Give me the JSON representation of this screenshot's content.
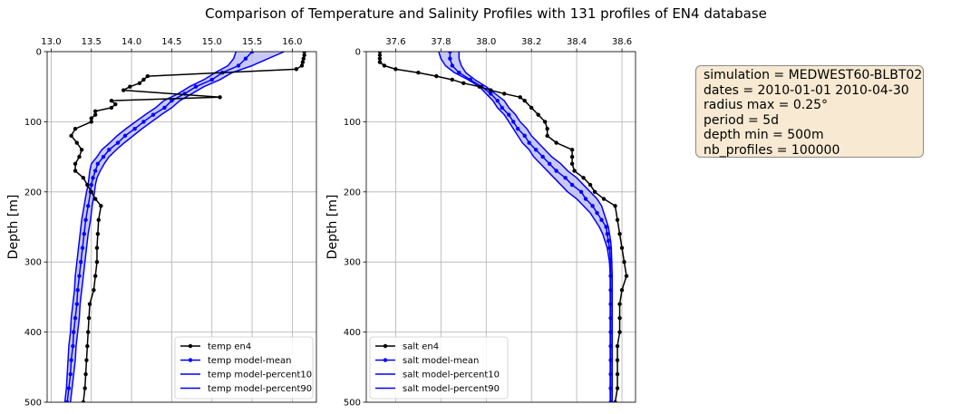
{
  "title": "Comparison of Temperature and Salinity Profiles with 131 profiles of EN4 database",
  "info_box": [
    "simulation = MEDWEST60-BLBT02",
    "dates = 2010-01-01 2010-04-30",
    "radius max = 0.25°",
    "period = 5d",
    "depth min = 500m",
    "nb_profiles = 100000"
  ],
  "colors": {
    "obs": "#000000",
    "model": "#0000ff",
    "band": "#b7b7f4",
    "grid": "#b0b0b0"
  },
  "chart_data": [
    {
      "type": "line",
      "panel": "temperature",
      "ylabel": "Depth [m]",
      "ylim": [
        500,
        0
      ],
      "xlim": [
        12.95,
        16.3
      ],
      "x_ticks": [
        "13.0",
        "13.5",
        "14.0",
        "14.5",
        "15.0",
        "15.5",
        "16.0"
      ],
      "y_ticks": [
        "0",
        "100",
        "200",
        "300",
        "400",
        "500"
      ],
      "grid": true,
      "legend_position": "lower-right",
      "legend": [
        "temp en4",
        "temp model-mean",
        "temp model-percent10",
        "temp model-percent90"
      ],
      "series": [
        {
          "name": "temp en4",
          "depth": [
            0,
            5,
            10,
            15,
            20,
            25,
            35,
            40,
            45,
            50,
            55,
            65,
            70,
            75,
            80,
            85,
            90,
            95,
            100,
            110,
            120,
            130,
            140,
            150,
            160,
            170,
            180,
            190,
            200,
            210,
            220,
            240,
            260,
            280,
            300,
            320,
            340,
            360,
            380,
            400,
            420,
            440,
            460,
            480,
            500
          ],
          "values": [
            16.15,
            16.15,
            16.14,
            16.13,
            16.12,
            16.05,
            14.2,
            14.15,
            14.1,
            13.98,
            13.9,
            15.1,
            13.75,
            13.8,
            13.75,
            13.55,
            13.55,
            13.5,
            13.5,
            13.3,
            13.25,
            13.32,
            13.38,
            13.35,
            13.3,
            13.3,
            13.4,
            13.45,
            13.5,
            13.55,
            13.62,
            13.59,
            13.58,
            13.57,
            13.57,
            13.55,
            13.53,
            13.48,
            13.47,
            13.46,
            13.45,
            13.44,
            13.43,
            13.42,
            13.4
          ]
        },
        {
          "name": "temp model-mean",
          "depth": [
            0,
            10,
            20,
            30,
            40,
            50,
            60,
            70,
            80,
            90,
            100,
            110,
            120,
            130,
            140,
            150,
            160,
            170,
            180,
            190,
            200,
            220,
            240,
            260,
            280,
            300,
            320,
            340,
            360,
            380,
            400,
            420,
            440,
            460,
            480,
            500
          ],
          "values": [
            15.5,
            15.42,
            15.33,
            15.13,
            15.0,
            14.8,
            14.66,
            14.5,
            14.41,
            14.27,
            14.15,
            14.04,
            13.92,
            13.83,
            13.72,
            13.65,
            13.58,
            13.55,
            13.52,
            13.5,
            13.49,
            13.46,
            13.43,
            13.41,
            13.39,
            13.37,
            13.35,
            13.33,
            13.32,
            13.3,
            13.28,
            13.27,
            13.25,
            13.24,
            13.22,
            13.2
          ]
        },
        {
          "name": "temp model-percent10",
          "depth": [
            0,
            10,
            20,
            30,
            40,
            50,
            60,
            70,
            80,
            90,
            100,
            110,
            120,
            130,
            140,
            150,
            160,
            170,
            180,
            190,
            200,
            220,
            240,
            260,
            280,
            300,
            320,
            340,
            360,
            380,
            400,
            420,
            440,
            460,
            480,
            500
          ],
          "values": [
            15.3,
            15.27,
            15.2,
            15.04,
            14.9,
            14.72,
            14.58,
            14.4,
            14.3,
            14.17,
            14.05,
            13.93,
            13.82,
            13.73,
            13.63,
            13.57,
            13.5,
            13.48,
            13.47,
            13.46,
            13.44,
            13.41,
            13.38,
            13.36,
            13.34,
            13.32,
            13.3,
            13.29,
            13.27,
            13.25,
            13.24,
            13.22,
            13.21,
            13.2,
            13.19,
            13.17
          ]
        },
        {
          "name": "temp model-percent90",
          "depth": [
            0,
            10,
            20,
            30,
            40,
            50,
            60,
            70,
            80,
            90,
            100,
            110,
            120,
            130,
            140,
            150,
            160,
            170,
            180,
            190,
            200,
            220,
            240,
            260,
            280,
            300,
            320,
            340,
            360,
            380,
            400,
            420,
            440,
            460,
            480,
            500
          ],
          "values": [
            15.9,
            15.7,
            15.5,
            15.25,
            15.1,
            14.9,
            14.75,
            14.6,
            14.5,
            14.37,
            14.25,
            14.13,
            14.02,
            13.91,
            13.81,
            13.72,
            13.66,
            13.61,
            13.57,
            13.55,
            13.54,
            13.51,
            13.49,
            13.46,
            13.44,
            13.42,
            13.4,
            13.38,
            13.36,
            13.35,
            13.33,
            13.31,
            13.3,
            13.28,
            13.26,
            13.24
          ]
        }
      ]
    },
    {
      "type": "line",
      "panel": "salinity",
      "ylabel": "Depth [m]",
      "ylim": [
        500,
        0
      ],
      "xlim": [
        37.47,
        38.66
      ],
      "x_ticks": [
        "37.6",
        "37.8",
        "38.0",
        "38.2",
        "38.4",
        "38.6"
      ],
      "y_ticks": [
        "0",
        "100",
        "200",
        "300",
        "400",
        "500"
      ],
      "grid": true,
      "legend_position": "lower-left",
      "legend": [
        "salt en4",
        "salt model-mean",
        "salt model-percent10",
        "salt model-percent90"
      ],
      "series": [
        {
          "name": "salt en4",
          "depth": [
            0,
            5,
            10,
            15,
            20,
            25,
            30,
            35,
            40,
            45,
            50,
            55,
            60,
            65,
            70,
            80,
            90,
            100,
            110,
            120,
            130,
            140,
            150,
            160,
            170,
            180,
            190,
            200,
            210,
            220,
            240,
            260,
            280,
            300,
            320,
            340,
            360,
            380,
            400,
            420,
            440,
            460,
            480,
            500
          ],
          "values": [
            37.53,
            37.53,
            37.53,
            37.53,
            37.55,
            37.6,
            37.7,
            37.78,
            37.85,
            37.9,
            37.97,
            38.02,
            38.08,
            38.15,
            38.17,
            38.2,
            38.23,
            38.26,
            38.27,
            38.27,
            38.31,
            38.38,
            38.38,
            38.38,
            38.39,
            38.43,
            38.46,
            38.48,
            38.52,
            38.57,
            38.58,
            38.59,
            38.6,
            38.61,
            38.62,
            38.6,
            38.59,
            38.59,
            38.59,
            38.58,
            38.58,
            38.58,
            38.58,
            38.57
          ]
        },
        {
          "name": "salt model-mean",
          "depth": [
            0,
            10,
            20,
            30,
            40,
            50,
            60,
            70,
            80,
            90,
            100,
            110,
            120,
            130,
            140,
            150,
            160,
            170,
            180,
            190,
            200,
            210,
            220,
            230,
            240,
            250,
            260,
            270,
            280,
            300,
            320,
            340,
            360,
            380,
            400,
            420,
            440,
            460,
            480,
            500
          ],
          "values": [
            37.84,
            37.84,
            37.85,
            37.88,
            37.93,
            37.98,
            38.02,
            38.05,
            38.07,
            38.1,
            38.12,
            38.14,
            38.17,
            38.19,
            38.22,
            38.25,
            38.28,
            38.31,
            38.35,
            38.38,
            38.42,
            38.44,
            38.47,
            38.49,
            38.51,
            38.53,
            38.535,
            38.54,
            38.545,
            38.55,
            38.55,
            38.55,
            38.55,
            38.55,
            38.55,
            38.55,
            38.55,
            38.55,
            38.55,
            38.55
          ]
        },
        {
          "name": "salt model-percent10",
          "depth": [
            0,
            10,
            20,
            30,
            40,
            50,
            60,
            70,
            80,
            90,
            100,
            110,
            120,
            130,
            140,
            150,
            160,
            170,
            180,
            190,
            200,
            210,
            220,
            230,
            240,
            250,
            260,
            270,
            280,
            300,
            320,
            340,
            360,
            380,
            400,
            420,
            440,
            460,
            480,
            500
          ],
          "values": [
            37.79,
            37.8,
            37.82,
            37.86,
            37.92,
            37.97,
            38.0,
            38.03,
            38.05,
            38.08,
            38.1,
            38.12,
            38.14,
            38.16,
            38.19,
            38.21,
            38.24,
            38.27,
            38.3,
            38.33,
            38.36,
            38.4,
            38.43,
            38.46,
            38.48,
            38.5,
            38.515,
            38.525,
            38.535,
            38.545,
            38.548,
            38.548,
            38.548,
            38.548,
            38.548,
            38.548,
            38.548,
            38.548,
            38.548,
            38.548
          ]
        },
        {
          "name": "salt model-percent90",
          "depth": [
            0,
            10,
            20,
            30,
            40,
            50,
            60,
            70,
            80,
            90,
            100,
            110,
            120,
            130,
            140,
            150,
            160,
            170,
            180,
            190,
            200,
            210,
            220,
            230,
            240,
            250,
            260,
            270,
            280,
            300,
            320,
            340,
            360,
            380,
            400,
            420,
            440,
            460,
            480,
            500
          ],
          "values": [
            37.88,
            37.88,
            37.89,
            37.91,
            37.95,
            38.0,
            38.04,
            38.08,
            38.1,
            38.13,
            38.15,
            38.18,
            38.2,
            38.23,
            38.26,
            38.29,
            38.33,
            38.36,
            38.4,
            38.43,
            38.46,
            38.49,
            38.51,
            38.52,
            38.53,
            38.54,
            38.545,
            38.55,
            38.553,
            38.555,
            38.557,
            38.557,
            38.557,
            38.557,
            38.557,
            38.557,
            38.557,
            38.557,
            38.557,
            38.557
          ]
        }
      ]
    }
  ]
}
